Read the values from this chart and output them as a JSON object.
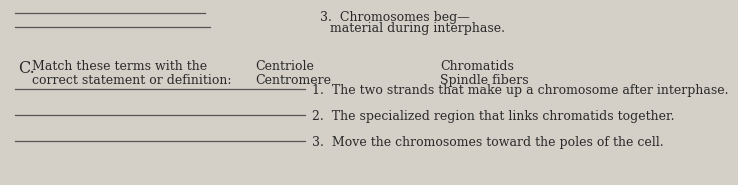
{
  "bg_color": "#d4cfc7",
  "text_color": "#2a2a2a",
  "top_line1": "3.  Chromosomes beg—",
  "top_line2": "material during interphase.",
  "section_label": "C.",
  "section_desc_line1": "Match these terms with the",
  "section_desc_line2": "correct statement or definition:",
  "terms_col1_line1": "Centriole",
  "terms_col1_line2": "Centromere",
  "terms_col2_line1": "Chromatids",
  "terms_col2_line2": "Spindle fibers",
  "item1": "1.  The two strands that make up a chromosome after interphase.",
  "item2": "2.  The specialized region that links chromatids together.",
  "item3": "3.  Move the chromosomes toward the poles of the cell.",
  "line_color": "#555555",
  "font_size": 9.0,
  "font_size_C": 11.5,
  "font_size_Match": 11.5
}
